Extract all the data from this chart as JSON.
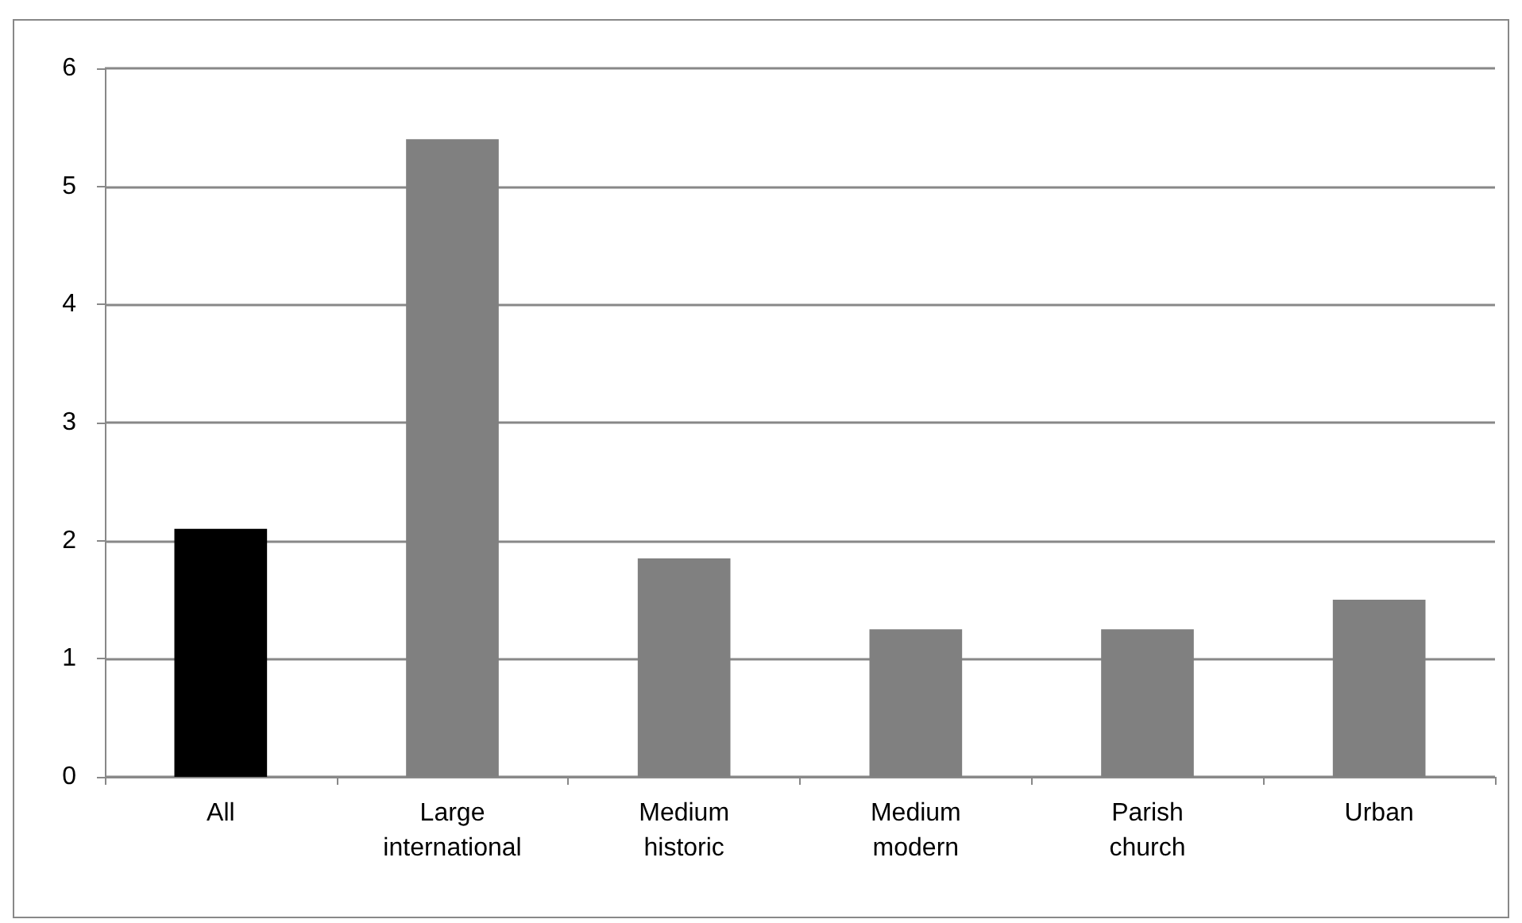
{
  "chart_data": {
    "type": "bar",
    "categories": [
      "All",
      "Large\ninternational",
      "Medium\nhistoric",
      "Medium\nmodern",
      "Parish\nchurch",
      "Urban"
    ],
    "values": [
      2.1,
      5.4,
      1.85,
      1.25,
      1.25,
      1.5
    ],
    "colors": [
      "#000000",
      "#808080",
      "#808080",
      "#808080",
      "#808080",
      "#808080"
    ],
    "ylim": [
      0,
      6
    ],
    "yticks": [
      0,
      1,
      2,
      3,
      4,
      5,
      6
    ],
    "grid": "y"
  }
}
